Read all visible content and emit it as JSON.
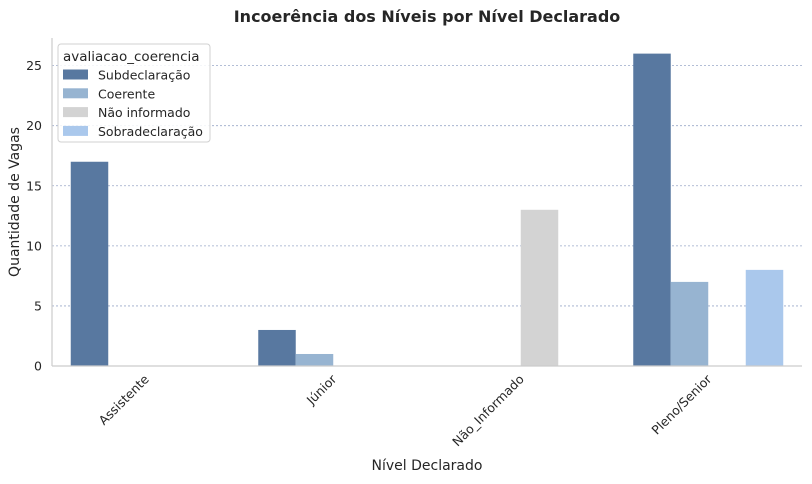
{
  "chart_data": {
    "type": "bar",
    "title": "Incoerência dos Níveis por Nível Declarado",
    "xlabel": "Nível Declarado",
    "ylabel": "Quantidade de Vagas",
    "categories": [
      "Assistente",
      "Júnior",
      "Não_Informado",
      "Pleno/Senior"
    ],
    "ylim": [
      0,
      27.3
    ],
    "yticks": [
      0,
      5,
      10,
      15,
      20,
      25
    ],
    "grid": "y-dashed",
    "legend": {
      "title": "avaliacao_coerencia",
      "placement": "top-left"
    },
    "series": [
      {
        "name": "Subdeclaração",
        "color": "#5878a0",
        "values": [
          17,
          3,
          0,
          26
        ]
      },
      {
        "name": "Coerente",
        "color": "#97b4d1",
        "values": [
          0,
          1,
          0,
          7
        ]
      },
      {
        "name": "Não informado",
        "color": "#d3d3d3",
        "values": [
          0,
          0,
          13,
          0
        ]
      },
      {
        "name": "Sobradeclaração",
        "color": "#aac8ec",
        "values": [
          0,
          0,
          0,
          8
        ]
      }
    ]
  }
}
